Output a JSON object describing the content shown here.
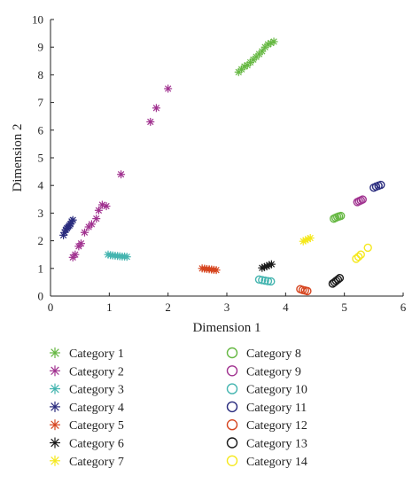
{
  "chart_data": {
    "type": "scatter",
    "title": "",
    "xlabel": "Dimension 1",
    "ylabel": "Dimension 2",
    "xlim": [
      0,
      6
    ],
    "ylim": [
      0,
      10
    ],
    "xticks": [
      0,
      1,
      2,
      3,
      4,
      5,
      6
    ],
    "yticks": [
      0,
      1,
      2,
      3,
      4,
      5,
      6,
      7,
      8,
      9,
      10
    ],
    "grid": false,
    "legend_position": "below",
    "series": [
      {
        "name": "Category 1",
        "marker": "asterisk",
        "color": "#66b843",
        "points": [
          [
            3.2,
            8.1
          ],
          [
            3.25,
            8.2
          ],
          [
            3.3,
            8.3
          ],
          [
            3.35,
            8.35
          ],
          [
            3.4,
            8.45
          ],
          [
            3.45,
            8.55
          ],
          [
            3.5,
            8.65
          ],
          [
            3.55,
            8.75
          ],
          [
            3.6,
            8.85
          ],
          [
            3.65,
            9.0
          ],
          [
            3.7,
            9.1
          ],
          [
            3.75,
            9.15
          ],
          [
            3.8,
            9.2
          ]
        ]
      },
      {
        "name": "Category 2",
        "marker": "asterisk",
        "color": "#a0318f",
        "points": [
          [
            0.38,
            1.4
          ],
          [
            0.42,
            1.5
          ],
          [
            0.48,
            1.8
          ],
          [
            0.52,
            1.9
          ],
          [
            0.58,
            2.3
          ],
          [
            0.65,
            2.5
          ],
          [
            0.7,
            2.6
          ],
          [
            0.78,
            2.8
          ],
          [
            0.82,
            3.1
          ],
          [
            0.88,
            3.3
          ],
          [
            0.95,
            3.25
          ],
          [
            1.2,
            4.4
          ],
          [
            1.7,
            6.3
          ],
          [
            1.8,
            6.8
          ],
          [
            2.0,
            7.5
          ]
        ]
      },
      {
        "name": "Category 3",
        "marker": "asterisk",
        "color": "#45b5b0",
        "points": [
          [
            0.98,
            1.5
          ],
          [
            1.02,
            1.48
          ],
          [
            1.06,
            1.47
          ],
          [
            1.1,
            1.46
          ],
          [
            1.14,
            1.45
          ],
          [
            1.18,
            1.44
          ],
          [
            1.22,
            1.43
          ],
          [
            1.26,
            1.43
          ],
          [
            1.3,
            1.42
          ]
        ]
      },
      {
        "name": "Category 4",
        "marker": "asterisk",
        "color": "#2a2c7e",
        "points": [
          [
            0.22,
            2.2
          ],
          [
            0.24,
            2.3
          ],
          [
            0.26,
            2.4
          ],
          [
            0.28,
            2.45
          ],
          [
            0.3,
            2.5
          ],
          [
            0.32,
            2.55
          ],
          [
            0.34,
            2.6
          ],
          [
            0.36,
            2.7
          ],
          [
            0.38,
            2.75
          ]
        ]
      },
      {
        "name": "Category 5",
        "marker": "asterisk",
        "color": "#d6451f",
        "points": [
          [
            2.58,
            1.0
          ],
          [
            2.62,
            0.99
          ],
          [
            2.66,
            0.98
          ],
          [
            2.7,
            0.97
          ],
          [
            2.74,
            0.96
          ],
          [
            2.78,
            0.95
          ],
          [
            2.82,
            0.94
          ]
        ]
      },
      {
        "name": "Category 6",
        "marker": "asterisk",
        "color": "#1a1a1a",
        "points": [
          [
            3.6,
            1.02
          ],
          [
            3.64,
            1.05
          ],
          [
            3.68,
            1.08
          ],
          [
            3.72,
            1.12
          ],
          [
            3.76,
            1.15
          ]
        ]
      },
      {
        "name": "Category 7",
        "marker": "asterisk",
        "color": "#f5e81c",
        "points": [
          [
            4.3,
            1.98
          ],
          [
            4.34,
            2.02
          ],
          [
            4.38,
            2.06
          ],
          [
            4.42,
            2.1
          ]
        ]
      },
      {
        "name": "Category 8",
        "marker": "circle",
        "color": "#66b843",
        "points": [
          [
            4.82,
            2.8
          ],
          [
            4.85,
            2.83
          ],
          [
            4.88,
            2.86
          ],
          [
            4.91,
            2.88
          ],
          [
            4.94,
            2.9
          ]
        ]
      },
      {
        "name": "Category 9",
        "marker": "circle",
        "color": "#a0318f",
        "points": [
          [
            5.22,
            3.4
          ],
          [
            5.25,
            3.43
          ],
          [
            5.28,
            3.46
          ],
          [
            5.31,
            3.49
          ]
        ]
      },
      {
        "name": "Category 10",
        "marker": "circle",
        "color": "#45b5b0",
        "points": [
          [
            3.55,
            0.6
          ],
          [
            3.6,
            0.58
          ],
          [
            3.65,
            0.56
          ],
          [
            3.7,
            0.54
          ],
          [
            3.75,
            0.53
          ]
        ]
      },
      {
        "name": "Category 11",
        "marker": "circle",
        "color": "#2a2c7e",
        "points": [
          [
            5.5,
            3.92
          ],
          [
            5.54,
            3.96
          ],
          [
            5.58,
            3.99
          ],
          [
            5.62,
            4.02
          ]
        ]
      },
      {
        "name": "Category 12",
        "marker": "circle",
        "color": "#d6451f",
        "points": [
          [
            4.25,
            0.25
          ],
          [
            4.29,
            0.22
          ],
          [
            4.33,
            0.2
          ],
          [
            4.37,
            0.18
          ]
        ]
      },
      {
        "name": "Category 13",
        "marker": "circle",
        "color": "#1a1a1a",
        "points": [
          [
            4.8,
            0.45
          ],
          [
            4.83,
            0.5
          ],
          [
            4.86,
            0.55
          ],
          [
            4.89,
            0.6
          ],
          [
            4.92,
            0.65
          ]
        ]
      },
      {
        "name": "Category 14",
        "marker": "circle",
        "color": "#f5e81c",
        "points": [
          [
            5.2,
            1.35
          ],
          [
            5.24,
            1.42
          ],
          [
            5.28,
            1.5
          ],
          [
            5.4,
            1.75
          ]
        ]
      }
    ]
  }
}
